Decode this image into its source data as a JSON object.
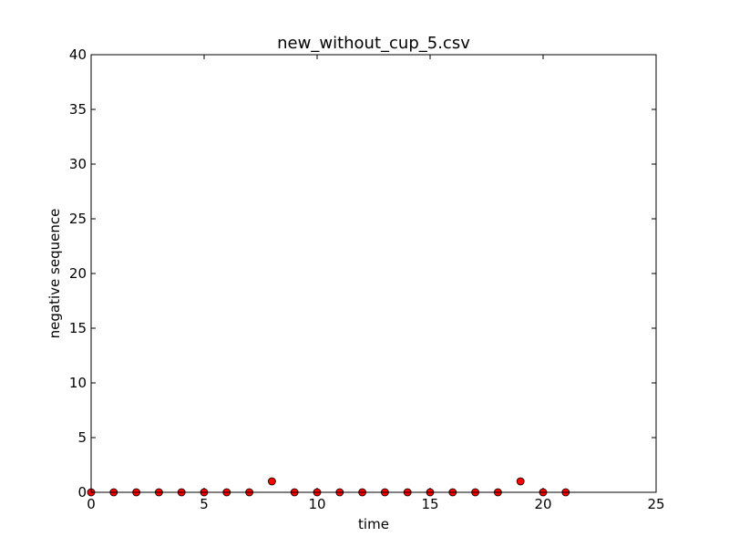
{
  "chart_data": {
    "type": "scatter",
    "title": "new_without_cup_5.csv",
    "xlabel": "time",
    "ylabel": "negative sequence",
    "xlim": [
      0,
      25
    ],
    "ylim": [
      0,
      40
    ],
    "xticks": [
      "0",
      "5",
      "10",
      "15",
      "20",
      "25"
    ],
    "yticks": [
      "0",
      "5",
      "10",
      "15",
      "20",
      "25",
      "30",
      "35",
      "40"
    ],
    "grid": false,
    "marker_color": "#ff0000",
    "series": [
      {
        "x": [
          0,
          1,
          2,
          3,
          4,
          5,
          6,
          7,
          8,
          9,
          10,
          11,
          12,
          13,
          14,
          15,
          16,
          17,
          18,
          19,
          20,
          21
        ],
        "y": [
          0,
          0,
          0,
          0,
          0,
          0,
          0,
          0,
          1,
          0,
          0,
          0,
          0,
          0,
          0,
          0,
          0,
          0,
          0,
          1,
          0,
          0
        ]
      }
    ]
  }
}
